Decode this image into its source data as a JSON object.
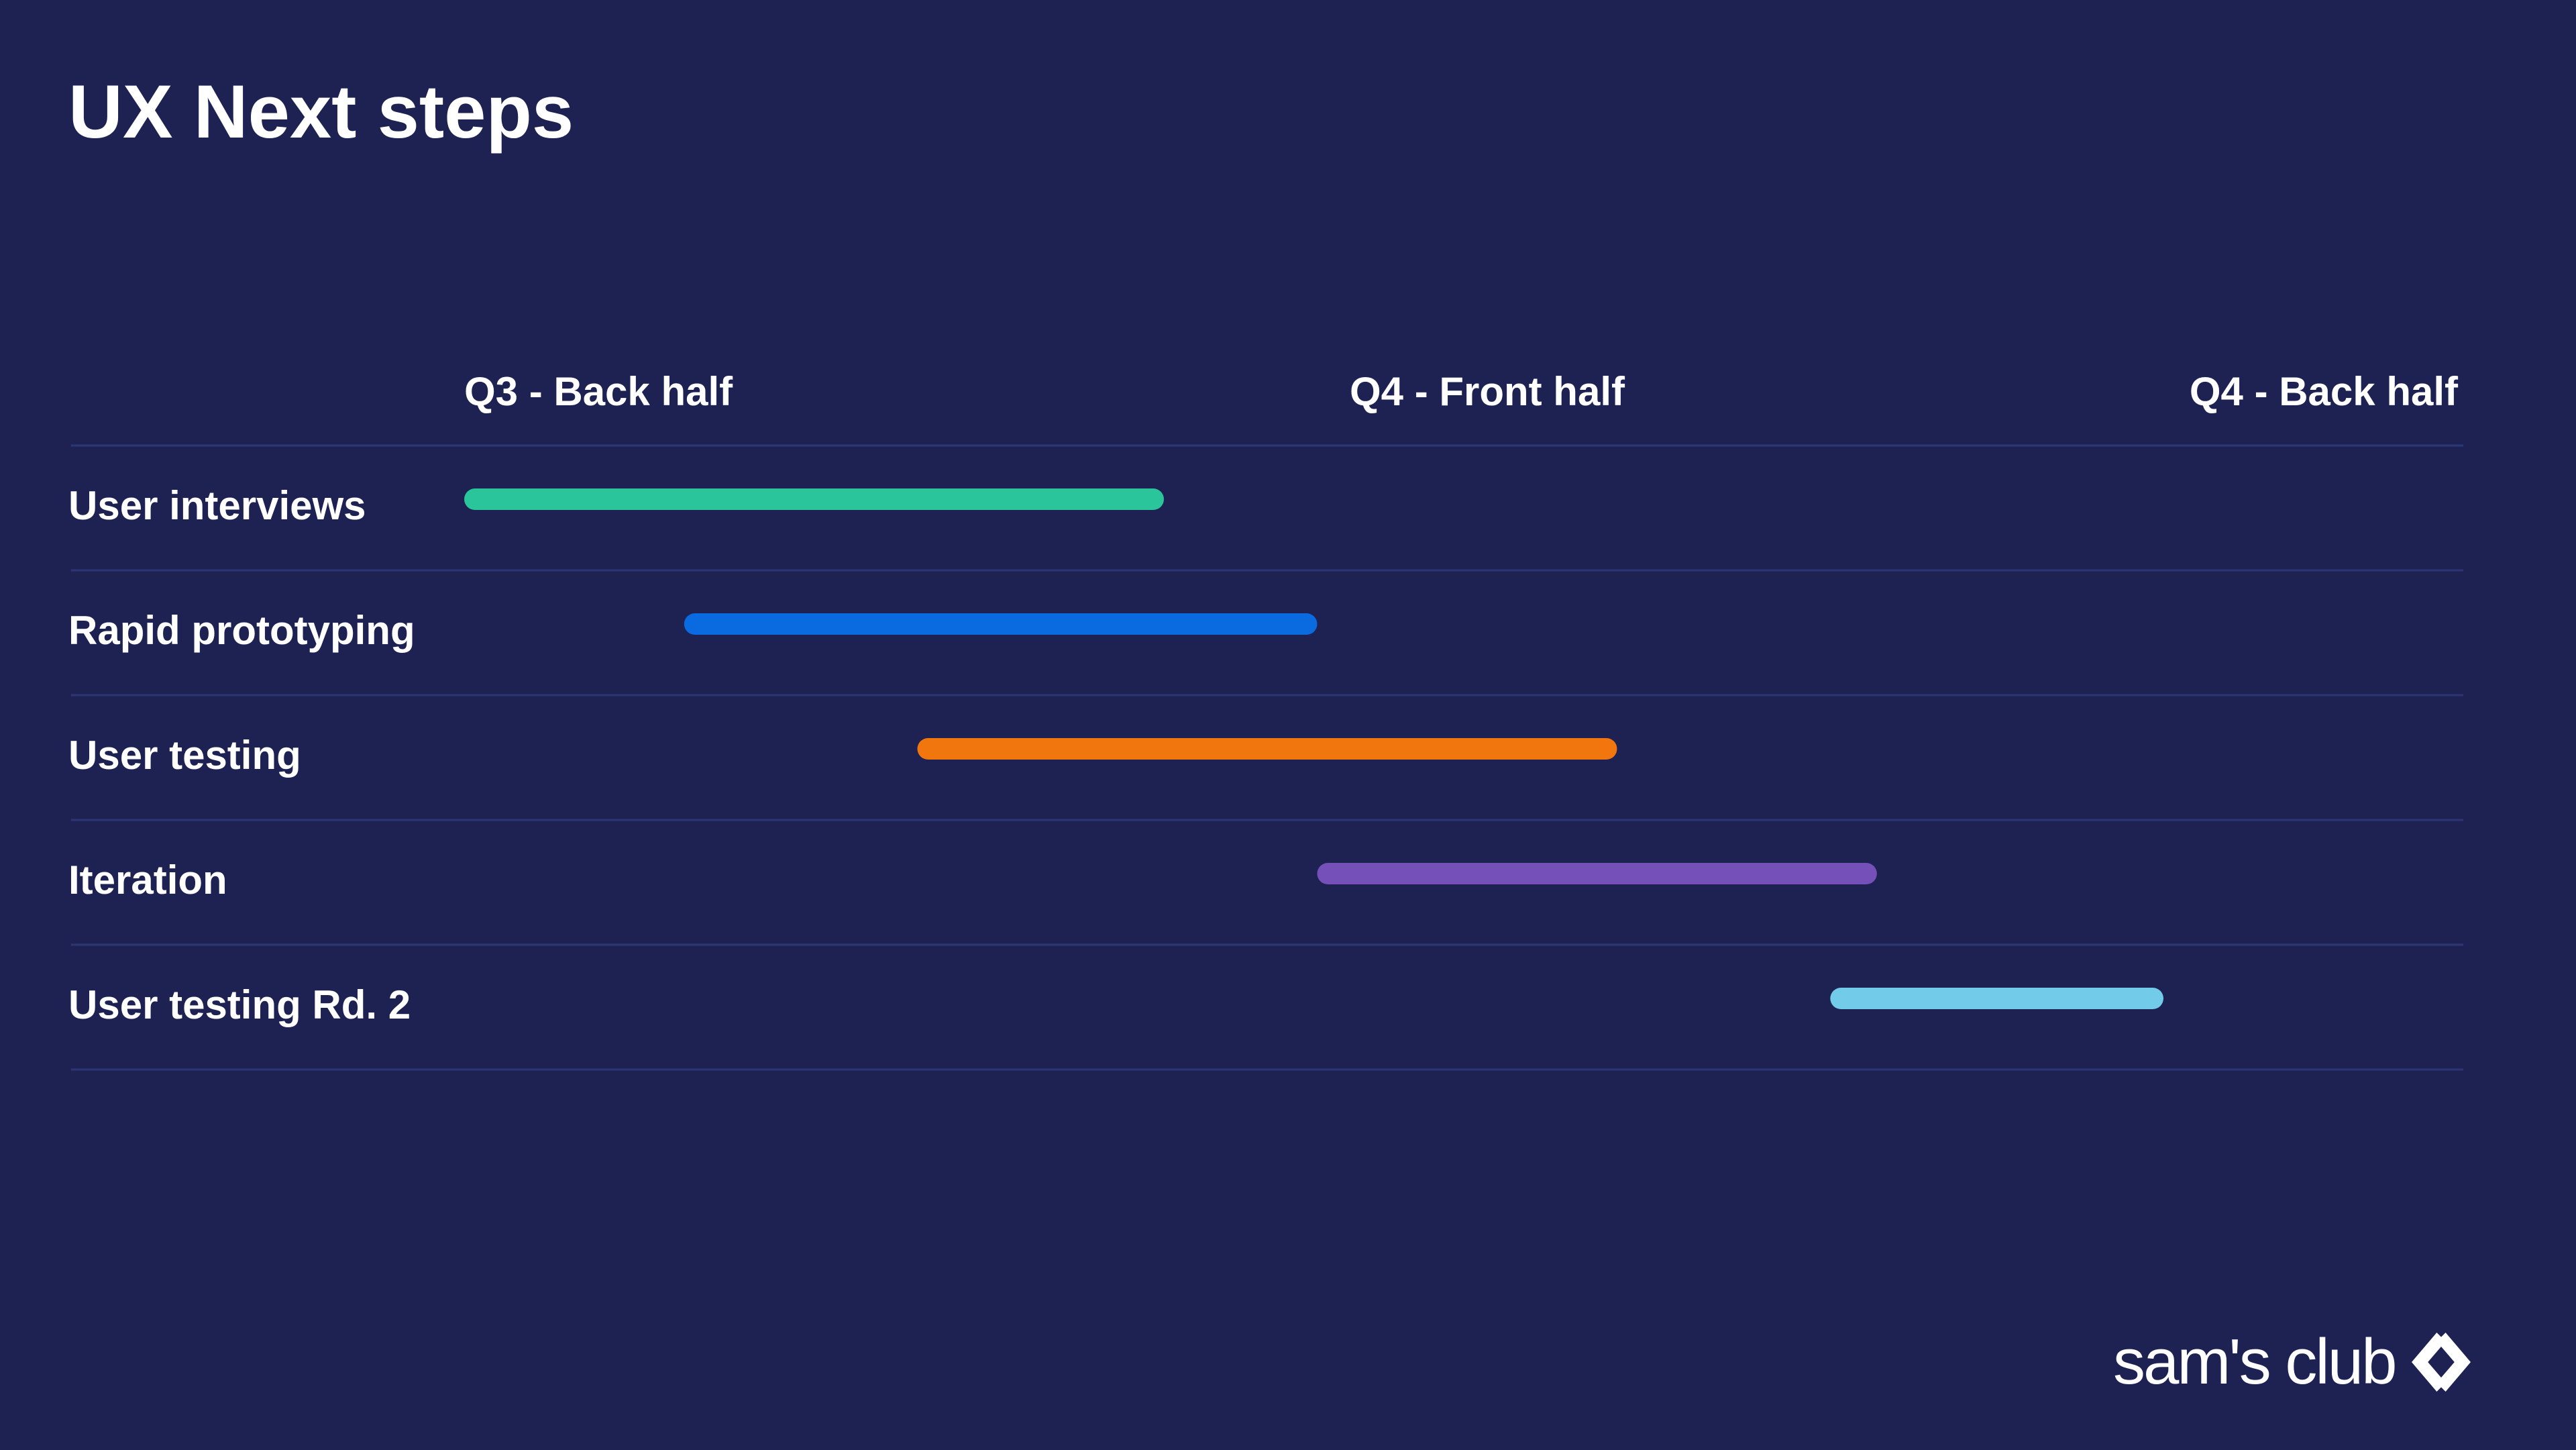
{
  "slide": {
    "title": "UX Next steps",
    "background_color": "#1d2253",
    "divider_color": "#2e3574"
  },
  "logo": {
    "text": "sam's club",
    "icon": "diamond-chevron-logo-icon"
  },
  "chart_data": {
    "type": "gantt",
    "title": "",
    "periods": [
      "Q3 - Back half",
      "Q4 - Front half",
      "Q4 - Back half"
    ],
    "timeline_range": [
      0,
      3
    ],
    "grid": "horizontal row dividers",
    "tasks": [
      {
        "label": "User interviews",
        "start": 0.0,
        "end": 1.05,
        "color": "#2ac59a"
      },
      {
        "label": "Rapid prototyping",
        "start": 0.33,
        "end": 1.28,
        "color": "#0a6be0"
      },
      {
        "label": "User testing",
        "start": 0.68,
        "end": 1.73,
        "color": "#f2760e"
      },
      {
        "label": "Iteration",
        "start": 1.28,
        "end": 2.12,
        "color": "#7450b8"
      },
      {
        "label": "User testing Rd. 2",
        "start": 2.05,
        "end": 2.55,
        "color": "#72cbe8"
      }
    ]
  }
}
